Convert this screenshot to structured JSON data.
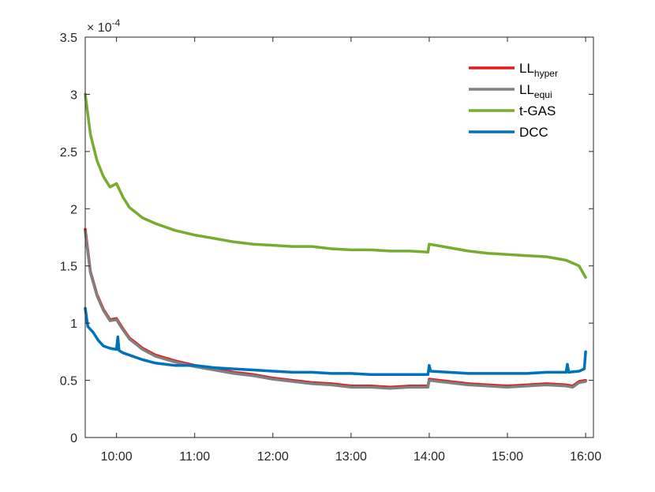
{
  "chart_data": {
    "type": "line",
    "title": "",
    "xlabel": "",
    "ylabel": "",
    "y_exponent_label": "× 10",
    "y_exponent_power": "-4",
    "xlim": [
      "09:36",
      "16:06"
    ],
    "ylim": [
      0,
      3.5
    ],
    "x_ticks": [
      "10:00",
      "11:00",
      "12:00",
      "13:00",
      "14:00",
      "15:00",
      "16:00"
    ],
    "y_ticks": [
      "0",
      "0.5",
      "1",
      "1.5",
      "2",
      "2.5",
      "3",
      "3.5"
    ],
    "grid": false,
    "legend_position": "top-right",
    "series": [
      {
        "name": "LL",
        "name_subscript": "hyper",
        "color": "#e41a1c",
        "x": [
          "09:36",
          "09:40",
          "09:45",
          "09:50",
          "09:55",
          "10:00",
          "10:05",
          "10:10",
          "10:20",
          "10:30",
          "10:45",
          "11:00",
          "11:15",
          "11:30",
          "11:45",
          "12:00",
          "12:15",
          "12:30",
          "12:45",
          "13:00",
          "13:15",
          "13:30",
          "13:45",
          "13:59",
          "14:00",
          "14:15",
          "14:30",
          "14:45",
          "15:00",
          "15:15",
          "15:30",
          "15:45",
          "15:50",
          "15:55",
          "16:00"
        ],
        "values": [
          1.82,
          1.45,
          1.25,
          1.12,
          1.03,
          1.04,
          0.95,
          0.87,
          0.78,
          0.72,
          0.67,
          0.63,
          0.6,
          0.57,
          0.55,
          0.52,
          0.5,
          0.48,
          0.47,
          0.45,
          0.45,
          0.44,
          0.45,
          0.45,
          0.51,
          0.49,
          0.47,
          0.46,
          0.45,
          0.46,
          0.47,
          0.46,
          0.45,
          0.49,
          0.5
        ]
      },
      {
        "name": "LL",
        "name_subscript": "equi",
        "color": "#808080",
        "x": [
          "09:36",
          "09:40",
          "09:45",
          "09:50",
          "09:55",
          "10:00",
          "10:05",
          "10:10",
          "10:20",
          "10:30",
          "10:45",
          "11:00",
          "11:15",
          "11:30",
          "11:45",
          "12:00",
          "12:15",
          "12:30",
          "12:45",
          "13:00",
          "13:15",
          "13:30",
          "13:45",
          "13:59",
          "14:00",
          "14:15",
          "14:30",
          "14:45",
          "15:00",
          "15:15",
          "15:30",
          "15:45",
          "15:50",
          "15:55",
          "16:00"
        ],
        "values": [
          1.8,
          1.44,
          1.24,
          1.11,
          1.02,
          1.03,
          0.94,
          0.86,
          0.77,
          0.71,
          0.66,
          0.62,
          0.59,
          0.56,
          0.54,
          0.51,
          0.49,
          0.47,
          0.46,
          0.44,
          0.44,
          0.43,
          0.44,
          0.44,
          0.5,
          0.48,
          0.46,
          0.45,
          0.44,
          0.45,
          0.46,
          0.45,
          0.44,
          0.48,
          0.49
        ]
      },
      {
        "name": "t-GAS",
        "color": "#77ac30",
        "x": [
          "09:36",
          "09:40",
          "09:45",
          "09:50",
          "09:55",
          "10:00",
          "10:05",
          "10:10",
          "10:20",
          "10:30",
          "10:45",
          "11:00",
          "11:15",
          "11:30",
          "11:45",
          "12:00",
          "12:15",
          "12:30",
          "12:45",
          "13:00",
          "13:15",
          "13:30",
          "13:45",
          "13:59",
          "14:00",
          "14:15",
          "14:30",
          "14:45",
          "15:00",
          "15:15",
          "15:30",
          "15:45",
          "15:55",
          "16:00"
        ],
        "values": [
          3.0,
          2.65,
          2.42,
          2.28,
          2.19,
          2.22,
          2.1,
          2.01,
          1.92,
          1.87,
          1.81,
          1.77,
          1.74,
          1.71,
          1.69,
          1.68,
          1.67,
          1.67,
          1.65,
          1.64,
          1.64,
          1.63,
          1.63,
          1.62,
          1.69,
          1.66,
          1.63,
          1.61,
          1.6,
          1.59,
          1.58,
          1.55,
          1.5,
          1.4
        ]
      },
      {
        "name": "DCC",
        "color": "#0072bd",
        "x": [
          "09:36",
          "09:38",
          "09:42",
          "09:46",
          "09:50",
          "09:55",
          "10:00",
          "10:01",
          "10:02",
          "10:05",
          "10:10",
          "10:20",
          "10:30",
          "10:45",
          "11:00",
          "11:15",
          "11:30",
          "11:45",
          "12:00",
          "12:15",
          "12:30",
          "12:45",
          "13:00",
          "13:15",
          "13:30",
          "13:45",
          "13:59",
          "14:00",
          "14:01",
          "14:15",
          "14:30",
          "14:45",
          "15:00",
          "15:15",
          "15:30",
          "15:45",
          "15:46",
          "15:47",
          "15:55",
          "15:59",
          "16:00"
        ],
        "values": [
          1.13,
          0.97,
          0.92,
          0.85,
          0.8,
          0.78,
          0.77,
          0.88,
          0.76,
          0.74,
          0.72,
          0.68,
          0.65,
          0.63,
          0.63,
          0.61,
          0.6,
          0.59,
          0.58,
          0.57,
          0.57,
          0.56,
          0.56,
          0.55,
          0.55,
          0.55,
          0.55,
          0.63,
          0.58,
          0.57,
          0.56,
          0.56,
          0.56,
          0.56,
          0.57,
          0.57,
          0.64,
          0.57,
          0.58,
          0.6,
          0.75
        ]
      }
    ]
  }
}
